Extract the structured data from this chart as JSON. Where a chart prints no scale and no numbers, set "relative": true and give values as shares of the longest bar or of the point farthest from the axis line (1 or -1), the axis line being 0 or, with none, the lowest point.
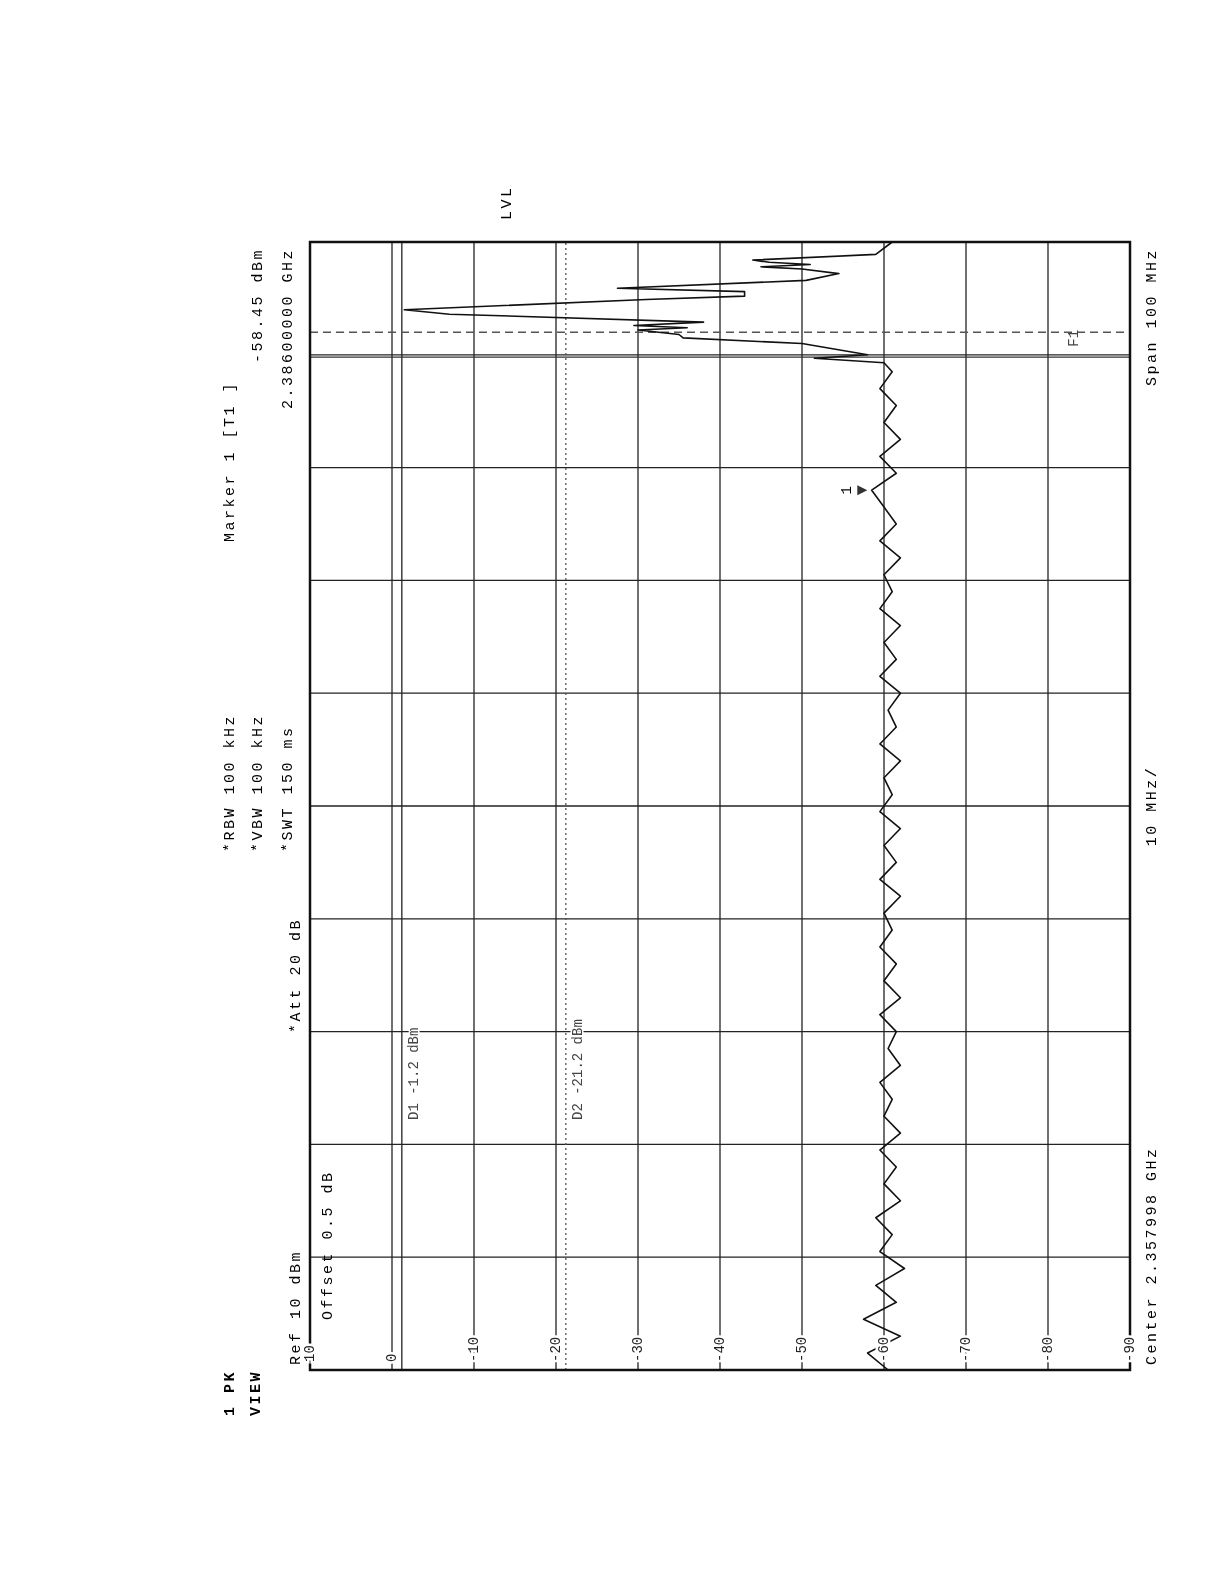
{
  "chart_data": {
    "type": "line",
    "annotations": [
      "Ref 10 dBm",
      "Offset 0.5 dB",
      "*Att 20 dB",
      "*RBW 100 kHz",
      "*VBW 100 kHz",
      "*SWT 150 ms",
      "Marker 1 [T1 ]",
      "-58.45 dBm",
      "2.38600000 GHz",
      "Center 2.357998 GHz",
      "10 MHz/",
      "Span 100 MHz",
      "1 PK",
      "VIEW",
      "LVL",
      {
        "text": "1",
        "x": -58.45,
        "y": 0.78
      }
    ],
    "relative": true,
    "xlim": [
      10,
      -90
    ],
    "xticks": [
      10,
      0,
      -10,
      -20,
      -30,
      -40,
      -50,
      -60,
      -70,
      -80,
      -90
    ],
    "grid": true,
    "ref_lines": [
      {
        "axis": "x",
        "value": -1.2,
        "label": "D1 -1.2 dBm",
        "color": "#222222",
        "line_style": "solid"
      },
      {
        "axis": "x",
        "value": -21.2,
        "label": "D2 -21.2 dBm",
        "color": "#555555",
        "line_style": "dotted"
      },
      {
        "axis": "y",
        "value": 0.92,
        "label": "F1",
        "color": "#555555",
        "line_style": "dashed"
      },
      {
        "axis": "y",
        "value": 0.898,
        "color": "#333333",
        "line_style": "solid"
      }
    ],
    "series": [
      {
        "color": "#111111",
        "values": [
          0,
          0.015,
          0.03,
          0.045,
          0.06,
          0.075,
          0.09,
          0.105,
          0.12,
          0.135,
          0.15,
          0.165,
          0.18,
          0.195,
          0.21,
          0.225,
          0.24,
          0.255,
          0.27,
          0.285,
          0.3,
          0.315,
          0.33,
          0.345,
          0.36,
          0.375,
          0.39,
          0.405,
          0.42,
          0.435,
          0.45,
          0.465,
          0.48,
          0.495,
          0.51,
          0.525,
          0.54,
          0.555,
          0.57,
          0.585,
          0.6,
          0.615,
          0.63,
          0.645,
          0.66,
          0.675,
          0.69,
          0.705,
          0.72,
          0.735,
          0.75,
          0.765,
          0.78,
          0.795,
          0.81,
          0.825,
          0.84,
          0.855,
          0.87,
          0.885,
          0.893,
          0.897,
          0.9,
          0.91,
          0.915,
          0.918,
          0.922,
          0.924,
          0.926,
          0.929,
          0.936,
          0.94,
          0.949,
          0.952,
          0.956,
          0.959,
          0.966,
          0.972,
          0.976,
          0.978,
          0.98,
          0.982,
          0.984,
          0.989,
          1
        ],
        "x": [
          -60.5,
          -58,
          -62,
          -57.5,
          -61.5,
          -59,
          -62.5,
          -59.5,
          -61,
          -59,
          -62,
          -60,
          -61.5,
          -59.5,
          -62,
          -60,
          -61,
          -59.5,
          -62,
          -60.5,
          -61.5,
          -59.5,
          -62,
          -60,
          -61.5,
          -59.5,
          -61,
          -60,
          -62,
          -59.5,
          -61.5,
          -60,
          -62,
          -59.5,
          -61,
          -60,
          -62,
          -59.5,
          -61.5,
          -60.5,
          -62,
          -59.5,
          -61.5,
          -60,
          -62,
          -59.5,
          -61,
          -60,
          -62,
          -59.5,
          -61.5,
          -60,
          -58.5,
          -61.5,
          -59.5,
          -62,
          -60,
          -61.5,
          -59.5,
          -61,
          -60,
          -51.5,
          -58,
          -50,
          -35.5,
          -35,
          -30,
          -36,
          -29.5,
          -38,
          -7,
          -1.5,
          -31,
          -43,
          -43,
          -27.5,
          -50.5,
          -54.5,
          -50,
          -45,
          -51,
          -46,
          -44,
          -59,
          -61
        ]
      }
    ]
  }
}
